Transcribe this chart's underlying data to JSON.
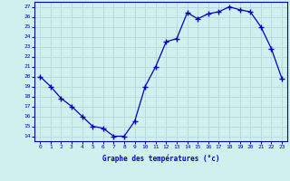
{
  "x": [
    0,
    1,
    2,
    3,
    4,
    5,
    6,
    7,
    8,
    9,
    10,
    11,
    12,
    13,
    14,
    15,
    16,
    17,
    18,
    19,
    20,
    21,
    22,
    23
  ],
  "y": [
    20,
    19,
    17.8,
    17,
    16,
    15,
    14.8,
    14,
    14,
    15.5,
    19,
    21,
    23.5,
    23.8,
    26.4,
    25.8,
    26.3,
    26.5,
    27,
    26.7,
    26.5,
    25,
    22.8,
    19.8
  ],
  "line_color": "#0000bb",
  "marker": "+",
  "marker_color": "#0000bb",
  "bg_color": "#d0f0f0",
  "grid_color": "#b0d8d8",
  "xlabel": "Graphe des températures (°c)",
  "xlabel_color": "#0000cc",
  "ylabel_ticks": [
    14,
    15,
    16,
    17,
    18,
    19,
    20,
    21,
    22,
    23,
    24,
    25,
    26,
    27
  ],
  "xlim": [
    -0.5,
    23.5
  ],
  "ylim": [
    13.5,
    27.5
  ],
  "tick_color": "#0000cc",
  "spine_color": "#0000aa"
}
